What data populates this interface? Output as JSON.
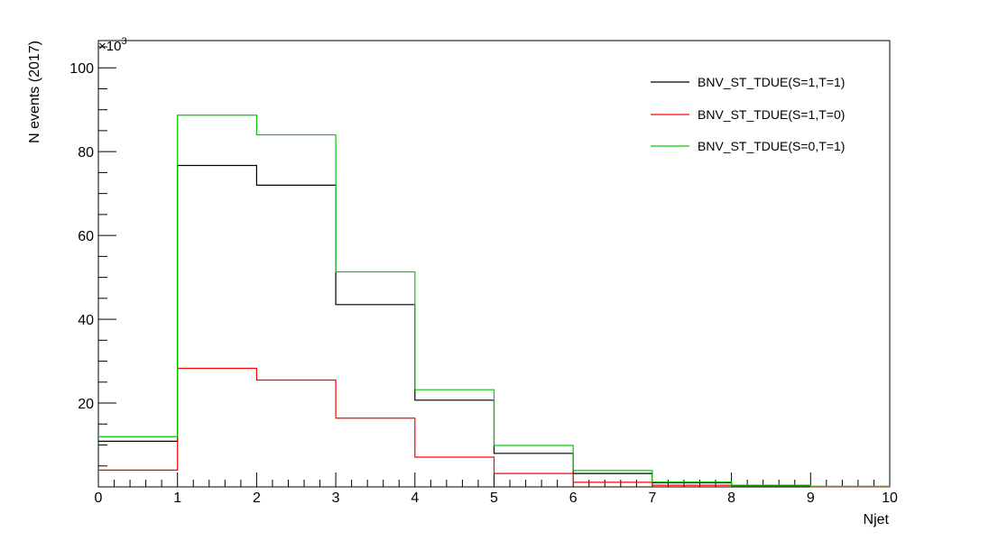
{
  "chart_data": {
    "type": "histogram-step",
    "title": "",
    "xlabel": "Njet",
    "ylabel": "N events (2017)",
    "y_multiplier_label": "×10",
    "y_multiplier_exponent": "3",
    "xlim": [
      0,
      10
    ],
    "ylim": [
      0,
      106.5
    ],
    "y_units": "x10^3 events",
    "x_ticks": [
      "0",
      "1",
      "2",
      "3",
      "4",
      "5",
      "6",
      "7",
      "8",
      "9",
      "10"
    ],
    "y_ticks": [
      "20",
      "40",
      "60",
      "80",
      "100"
    ],
    "bin_edges": [
      0,
      1,
      2,
      3,
      4,
      5,
      6,
      7,
      8,
      9,
      10
    ],
    "grid": false,
    "legend_position": "top-right",
    "series": [
      {
        "name": "BNV_ST_TDUE(S=1,T=1)",
        "color": "#000000",
        "values": [
          10.9,
          76.7,
          72.0,
          43.5,
          20.7,
          8.0,
          3.2,
          1.0,
          0.3,
          0.1
        ]
      },
      {
        "name": "BNV_ST_TDUE(S=1,T=0)",
        "color": "#ff0000",
        "values": [
          4.0,
          28.3,
          25.5,
          16.4,
          7.1,
          3.2,
          1.1,
          0.4,
          0.15,
          0.05
        ]
      },
      {
        "name": "BNV_ST_TDUE(S=0,T=1)",
        "color": "#00cc00",
        "values": [
          12.0,
          88.7,
          84.0,
          51.3,
          23.2,
          9.9,
          3.9,
          1.2,
          0.4,
          0.1
        ]
      }
    ]
  }
}
